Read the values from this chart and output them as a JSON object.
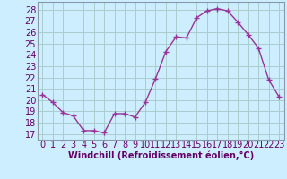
{
  "x": [
    0,
    1,
    2,
    3,
    4,
    5,
    6,
    7,
    8,
    9,
    10,
    11,
    12,
    13,
    14,
    15,
    16,
    17,
    18,
    19,
    20,
    21,
    22,
    23
  ],
  "y": [
    20.5,
    19.8,
    18.9,
    18.6,
    17.3,
    17.3,
    17.1,
    18.8,
    18.8,
    18.5,
    19.8,
    21.9,
    24.3,
    25.6,
    25.5,
    27.3,
    27.9,
    28.1,
    27.9,
    26.9,
    25.8,
    24.6,
    21.8,
    20.3
  ],
  "line_color": "#993399",
  "marker": "+",
  "marker_size": 4,
  "bg_color": "#cceeff",
  "grid_color": "#aacccc",
  "xlabel": "Windchill (Refroidissement éolien,°C)",
  "ylabel_ticks": [
    17,
    18,
    19,
    20,
    21,
    22,
    23,
    24,
    25,
    26,
    27,
    28
  ],
  "ylim": [
    16.5,
    28.7
  ],
  "xlim": [
    -0.5,
    23.5
  ],
  "xticks": [
    0,
    1,
    2,
    3,
    4,
    5,
    6,
    7,
    8,
    9,
    10,
    11,
    12,
    13,
    14,
    15,
    16,
    17,
    18,
    19,
    20,
    21,
    22,
    23
  ],
  "xlabel_fontsize": 7,
  "tick_fontsize": 7,
  "line_width": 1.0,
  "axes_border_color": "#8899aa"
}
